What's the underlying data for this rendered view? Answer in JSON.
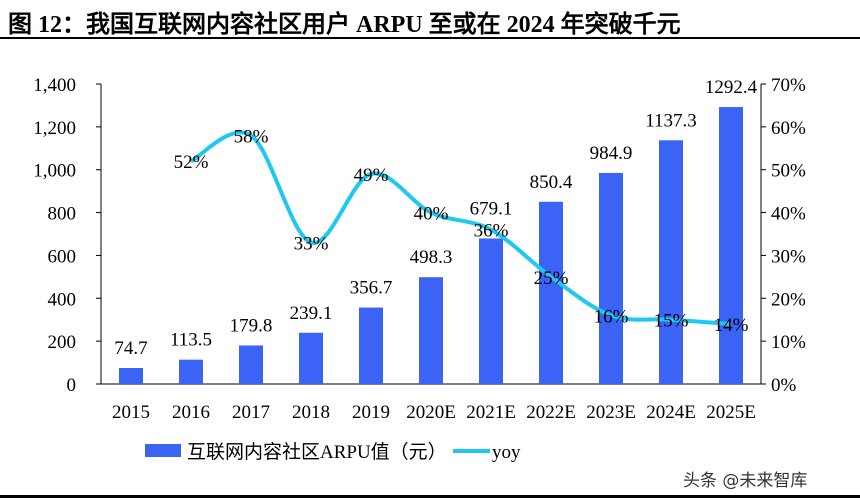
{
  "title": "图 12：我国互联网内容社区用户 ARPU 至或在 2024 年突破千元",
  "watermark": "头条 @未来智库",
  "chart_data": {
    "type": "bar+line",
    "categories": [
      "2015",
      "2016",
      "2017",
      "2018",
      "2019",
      "2020E",
      "2021E",
      "2022E",
      "2023E",
      "2024E",
      "2025E"
    ],
    "series": [
      {
        "name": "互联网内容社区ARPU值（元）",
        "type": "bar",
        "axis": "left",
        "color": "#3b63f5",
        "values": [
          74.7,
          113.5,
          179.8,
          239.1,
          356.7,
          498.3,
          679.1,
          850.4,
          984.9,
          1137.3,
          1292.4
        ],
        "labels": [
          "74.7",
          "113.5",
          "179.8",
          "239.1",
          "356.7",
          "498.3",
          "679.1",
          "850.4",
          "984.9",
          "1137.3",
          "1292.4"
        ]
      },
      {
        "name": "yoy",
        "type": "line",
        "axis": "right",
        "color": "#1ec8f0",
        "values": [
          null,
          52,
          58,
          33,
          49,
          40,
          36,
          25,
          16,
          15,
          14
        ],
        "labels": [
          "",
          "52%",
          "58%",
          "33%",
          "49%",
          "40%",
          "36%",
          "25%",
          "16%",
          "15%",
          "14%"
        ]
      }
    ],
    "left_axis": {
      "ylim": [
        0,
        1400
      ],
      "ticks": [
        "0",
        "200",
        "400",
        "600",
        "800",
        "1,000",
        "1,200",
        "1,400"
      ]
    },
    "right_axis": {
      "ylim": [
        0,
        70
      ],
      "ticks": [
        "0%",
        "10%",
        "20%",
        "30%",
        "40%",
        "50%",
        "60%",
        "70%"
      ]
    },
    "grid": false,
    "legend": "bottom"
  }
}
